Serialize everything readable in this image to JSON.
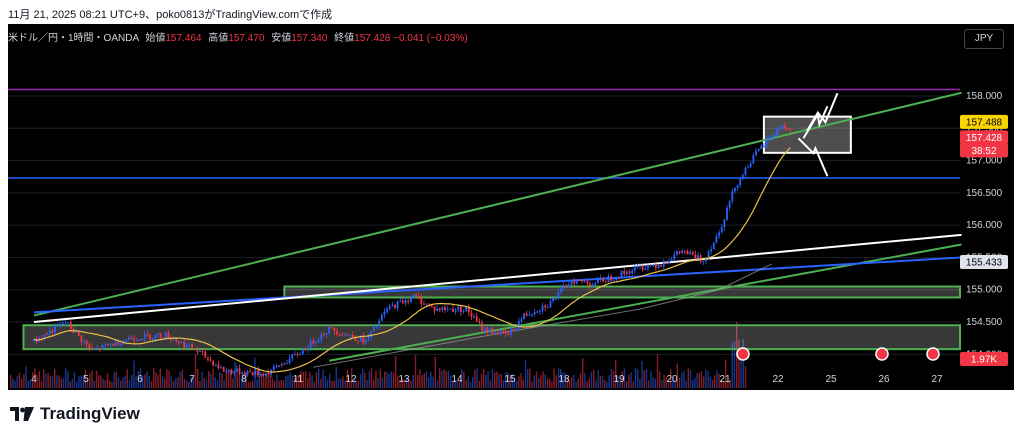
{
  "header": {
    "caption": "11月 21, 2025 08:21 UTC+9、poko0813がTradingView.comで作成"
  },
  "legend": {
    "symbol": "米ドル／円・1時間・OANDA",
    "open_label": "始値",
    "open": "157.464",
    "high_label": "高値",
    "high": "157.470",
    "low_label": "安値",
    "low": "157.340",
    "close_label": "終値",
    "close": "157.428",
    "change": "−0.041 (−0.03%)"
  },
  "currency_button": "JPY",
  "brand": {
    "name": "TradingView"
  },
  "colors": {
    "up": "#2962ff",
    "down": "#f23645",
    "ma": "#e8c04a",
    "slow_ma": "#9e9e9e",
    "green_line": "#4caf50",
    "blue_line": "#2962ff",
    "white_line": "#ffffff",
    "purple_line": "#9c27b0"
  },
  "chart_data": {
    "type": "candlestick",
    "x_axis_labels": [
      "4",
      "5",
      "6",
      "7",
      "8",
      "11",
      "12",
      "13",
      "14",
      "15",
      "18",
      "19",
      "20",
      "21",
      "22",
      "25",
      "26",
      "27"
    ],
    "y_axis_labels": [
      "158.000",
      "157.500",
      "157.000",
      "156.500",
      "156.000",
      "155.500",
      "155.000",
      "154.500",
      "154.000"
    ],
    "ylim": [
      153.85,
      158.65
    ],
    "price_badges": {
      "last": "157.428",
      "countdown": "38:52",
      "reference": "157.488",
      "level": "155.433",
      "volume": "1.97K"
    },
    "anchors": [
      {
        "d": 0,
        "p": 154.2
      },
      {
        "d": 0.6,
        "p": 154.5
      },
      {
        "d": 1.1,
        "p": 154.05
      },
      {
        "d": 1.8,
        "p": 154.25
      },
      {
        "d": 2.5,
        "p": 154.3
      },
      {
        "d": 3.1,
        "p": 154.05
      },
      {
        "d": 3.6,
        "p": 153.75
      },
      {
        "d": 4.4,
        "p": 153.7
      },
      {
        "d": 5.0,
        "p": 154.0
      },
      {
        "d": 5.6,
        "p": 154.4
      },
      {
        "d": 6.3,
        "p": 154.2
      },
      {
        "d": 6.7,
        "p": 154.7
      },
      {
        "d": 7.2,
        "p": 154.9
      },
      {
        "d": 7.6,
        "p": 154.7
      },
      {
        "d": 8.2,
        "p": 154.7
      },
      {
        "d": 8.5,
        "p": 154.4
      },
      {
        "d": 9.0,
        "p": 154.3
      },
      {
        "d": 9.3,
        "p": 154.6
      },
      {
        "d": 9.8,
        "p": 154.8
      },
      {
        "d": 10.2,
        "p": 155.15
      },
      {
        "d": 10.6,
        "p": 155.1
      },
      {
        "d": 11.0,
        "p": 155.2
      },
      {
        "d": 11.5,
        "p": 155.35
      },
      {
        "d": 11.9,
        "p": 155.4
      },
      {
        "d": 12.3,
        "p": 155.6
      },
      {
        "d": 12.7,
        "p": 155.45
      },
      {
        "d": 13.0,
        "p": 155.9
      },
      {
        "d": 13.3,
        "p": 156.6
      },
      {
        "d": 13.6,
        "p": 157.0
      },
      {
        "d": 13.9,
        "p": 157.3
      },
      {
        "d": 14.2,
        "p": 157.55
      },
      {
        "d": 14.4,
        "p": 157.43
      }
    ],
    "volume": "hourly volume histogram drawn along the bottom of the pane",
    "horizontal_levels": [
      {
        "name": "purple",
        "price": 158.1
      },
      {
        "name": "blue",
        "price": 156.73
      }
    ],
    "zones": [
      {
        "name": "upper-support-zone",
        "top": 155.05,
        "bottom": 154.88
      },
      {
        "name": "lower-support-zone",
        "top": 154.45,
        "bottom": 154.08
      },
      {
        "name": "consolidation-box",
        "top": 157.68,
        "bottom": 157.12
      }
    ],
    "trendlines": [
      {
        "name": "green-upper",
        "d1": 0,
        "p1": 154.6,
        "d2": 17.6,
        "p2": 158.05
      },
      {
        "name": "green-lower",
        "d1": 5.6,
        "p1": 153.9,
        "d2": 17.6,
        "p2": 155.7
      },
      {
        "name": "blue-trend",
        "d1": 0,
        "p1": 154.65,
        "d2": 17.6,
        "p2": 155.5
      },
      {
        "name": "white-trend",
        "d1": 0,
        "p1": 154.5,
        "d2": 17.6,
        "p2": 155.85
      }
    ],
    "zigzag": [
      {
        "d1": 14.6,
        "p1": 157.5,
        "d2": 14.9,
        "p2": 158.1
      }
    ]
  }
}
